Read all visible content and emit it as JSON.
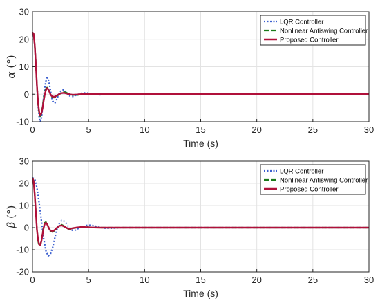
{
  "colors": {
    "lqr": "#3b5fcf",
    "nonlinear": "#1a7a1a",
    "proposed": "#b0103a"
  },
  "chart_data": [
    {
      "type": "line",
      "xlabel": "Time (s)",
      "ylabel_symbol": "α",
      "ylabel_unit": "(°)",
      "xlim": [
        0,
        30
      ],
      "ylim": [
        -10,
        30
      ],
      "xticks": [
        0,
        5,
        10,
        15,
        20,
        25,
        30
      ],
      "yticks": [
        -10,
        0,
        10,
        20,
        30
      ],
      "grid": true,
      "legend": "top-right",
      "series": [
        {
          "name": "LQR Controller",
          "style": "dotted",
          "x": [
            0,
            0.1,
            0.2,
            0.3,
            0.4,
            0.5,
            0.6,
            0.7,
            0.8,
            0.9,
            1.0,
            1.1,
            1.2,
            1.3,
            1.4,
            1.5,
            1.6,
            1.7,
            1.8,
            2.0,
            2.2,
            2.4,
            2.6,
            2.8,
            3.0,
            3.2,
            3.4,
            3.6,
            4.0,
            4.4,
            4.8,
            5.2,
            5.6,
            6.0,
            7.0,
            8.0,
            10,
            15,
            20,
            25,
            30
          ],
          "y": [
            22.5,
            22,
            18,
            11,
            3,
            -4,
            -8.5,
            -10,
            -8.5,
            -5,
            -1,
            2.5,
            4.8,
            6,
            5.5,
            3.8,
            1.5,
            -1,
            -2.5,
            -3.2,
            -1.5,
            0.5,
            1.5,
            1.6,
            0.8,
            -0.3,
            -0.8,
            -0.8,
            -0.2,
            0.4,
            0.5,
            0.2,
            -0.1,
            -0.2,
            0,
            0,
            0,
            0,
            0,
            0,
            0
          ]
        },
        {
          "name": "Nonlinear Antiswing Controller",
          "style": "dashed",
          "x": [
            0,
            0.1,
            0.2,
            0.3,
            0.4,
            0.5,
            0.6,
            0.7,
            0.8,
            0.9,
            1.0,
            1.1,
            1.2,
            1.3,
            1.4,
            1.5,
            1.6,
            1.7,
            1.8,
            2.0,
            2.2,
            2.4,
            2.6,
            2.8,
            3.0,
            3.2,
            3.4,
            3.6,
            4.0,
            4.4,
            4.8,
            5.2,
            5.6,
            6.0,
            7.0,
            8.0,
            10,
            15,
            20,
            25,
            30
          ],
          "y": [
            22.5,
            22,
            18,
            11,
            3,
            -3.5,
            -7,
            -8,
            -7,
            -4.5,
            -1.5,
            0.8,
            2,
            2.4,
            2,
            1,
            0,
            -0.8,
            -1.2,
            -1.2,
            -0.6,
            0,
            0.6,
            0.8,
            0.6,
            0.2,
            -0.1,
            -0.3,
            -0.3,
            0,
            0.2,
            0.2,
            0.05,
            0,
            0,
            0,
            0,
            0,
            0,
            0,
            0
          ]
        },
        {
          "name": "Proposed Controller",
          "style": "solid",
          "x": [
            0,
            0.1,
            0.2,
            0.3,
            0.4,
            0.5,
            0.6,
            0.7,
            0.8,
            0.9,
            1.0,
            1.1,
            1.2,
            1.3,
            1.4,
            1.5,
            1.6,
            1.7,
            1.8,
            2.0,
            2.2,
            2.4,
            2.6,
            2.8,
            3.0,
            3.2,
            3.4,
            3.6,
            4.0,
            4.4,
            4.8,
            5.2,
            5.6,
            6.0,
            7.0,
            8.0,
            10,
            15,
            20,
            25,
            30
          ],
          "y": [
            22.5,
            22,
            18,
            11,
            3,
            -3,
            -6.5,
            -7.6,
            -7,
            -5,
            -2.3,
            0,
            1.5,
            2.2,
            1.9,
            1,
            0,
            -0.6,
            -0.9,
            -0.9,
            -0.4,
            0.1,
            0.4,
            0.5,
            0.3,
            0.1,
            -0.1,
            -0.2,
            -0.1,
            0.05,
            0.1,
            0.05,
            0,
            0,
            0,
            0,
            0,
            0,
            0,
            0,
            0
          ]
        }
      ]
    },
    {
      "type": "line",
      "xlabel": "Time (s)",
      "ylabel_symbol": "β",
      "ylabel_unit": "(°)",
      "xlim": [
        0,
        30
      ],
      "ylim": [
        -20,
        30
      ],
      "xticks": [
        0,
        5,
        10,
        15,
        20,
        25,
        30
      ],
      "yticks": [
        -20,
        -10,
        0,
        10,
        20,
        30
      ],
      "grid": true,
      "legend": "top-right",
      "series": [
        {
          "name": "LQR Controller",
          "style": "dotted",
          "x": [
            0,
            0.2,
            0.4,
            0.6,
            0.8,
            1.0,
            1.2,
            1.4,
            1.6,
            1.8,
            2.0,
            2.2,
            2.4,
            2.6,
            2.8,
            3.0,
            3.2,
            3.4,
            3.6,
            3.8,
            4.0,
            4.4,
            4.8,
            5.2,
            5.6,
            6.0,
            6.4,
            6.8,
            7.2,
            8.0,
            10,
            15,
            20,
            25,
            30
          ],
          "y": [
            22.5,
            22,
            18,
            11,
            3,
            -5,
            -10.5,
            -12.8,
            -12,
            -9,
            -4.5,
            -0.5,
            2,
            3.2,
            3,
            2,
            0.5,
            -0.8,
            -1.3,
            -1.2,
            -0.6,
            0.3,
            1,
            1.1,
            0.7,
            0.2,
            -0.2,
            -0.3,
            -0.2,
            0,
            0,
            0,
            0,
            0,
            0
          ]
        },
        {
          "name": "Nonlinear Antiswing Controller",
          "style": "dashed",
          "x": [
            0,
            0.1,
            0.2,
            0.3,
            0.4,
            0.5,
            0.6,
            0.7,
            0.8,
            0.9,
            1.0,
            1.1,
            1.2,
            1.3,
            1.4,
            1.5,
            1.6,
            1.8,
            2.0,
            2.2,
            2.4,
            2.6,
            2.8,
            3.0,
            3.2,
            3.4,
            3.6,
            4.0,
            4.4,
            4.8,
            5.2,
            6.0,
            7.0,
            8.0,
            10,
            15,
            20,
            25,
            30
          ],
          "y": [
            22.5,
            21,
            15,
            7,
            -1,
            -6,
            -8.2,
            -8,
            -5.8,
            -2.5,
            0.5,
            2.2,
            2.5,
            1.8,
            0.5,
            -0.8,
            -1.6,
            -2,
            -1.2,
            0,
            1,
            1.3,
            0.8,
            0,
            -0.6,
            -0.6,
            -0.3,
            0.1,
            0.4,
            0.3,
            0.1,
            0,
            0,
            0,
            0,
            0,
            0,
            0,
            0
          ]
        },
        {
          "name": "Proposed Controller",
          "style": "solid",
          "x": [
            0,
            0.1,
            0.2,
            0.3,
            0.4,
            0.5,
            0.6,
            0.7,
            0.8,
            0.9,
            1.0,
            1.1,
            1.2,
            1.3,
            1.4,
            1.5,
            1.6,
            1.8,
            2.0,
            2.2,
            2.4,
            2.6,
            2.8,
            3.0,
            3.2,
            3.4,
            3.6,
            4.0,
            4.4,
            4.8,
            5.2,
            6.0,
            7.0,
            8.0,
            10,
            15,
            20,
            25,
            30
          ],
          "y": [
            22.5,
            21,
            15,
            7,
            -1,
            -5.5,
            -7.6,
            -7.8,
            -6,
            -3,
            0,
            1.8,
            2.2,
            1.6,
            0.5,
            -0.6,
            -1.3,
            -1.6,
            -1,
            0,
            0.8,
            1,
            0.6,
            0,
            -0.5,
            -0.5,
            -0.2,
            0.1,
            0.3,
            0.2,
            0.1,
            0,
            0,
            0,
            0,
            0,
            0,
            0,
            0
          ]
        }
      ]
    }
  ]
}
